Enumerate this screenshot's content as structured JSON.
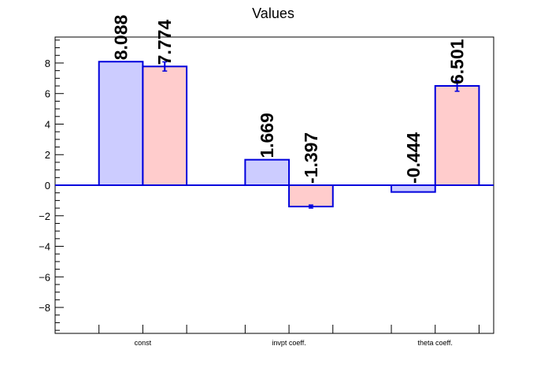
{
  "chart_data": {
    "type": "bar",
    "title": "Values",
    "xlabel": "",
    "ylabel": "",
    "categories": [
      "const",
      "invpt coeff.",
      "theta coeff."
    ],
    "series": [
      {
        "values": [
          8.088,
          1.669,
          -0.444
        ],
        "color": "#ccccff",
        "edge_color": "#0000dd",
        "labels": [
          "8.088",
          "1.669",
          "-0.444"
        ]
      },
      {
        "values": [
          7.774,
          -1.397,
          6.501
        ],
        "errors": [
          0.3,
          0.1,
          0.35
        ],
        "color": "#ffcccc",
        "edge_color": "#0000dd",
        "labels": [
          "7.774",
          "-1.397",
          "6.501"
        ]
      }
    ],
    "ylim": [
      -9.7,
      9.7
    ],
    "y_ticks": [
      -8,
      -6,
      -4,
      -2,
      0,
      2,
      4,
      6,
      8
    ],
    "grid": false,
    "legend": "none"
  }
}
